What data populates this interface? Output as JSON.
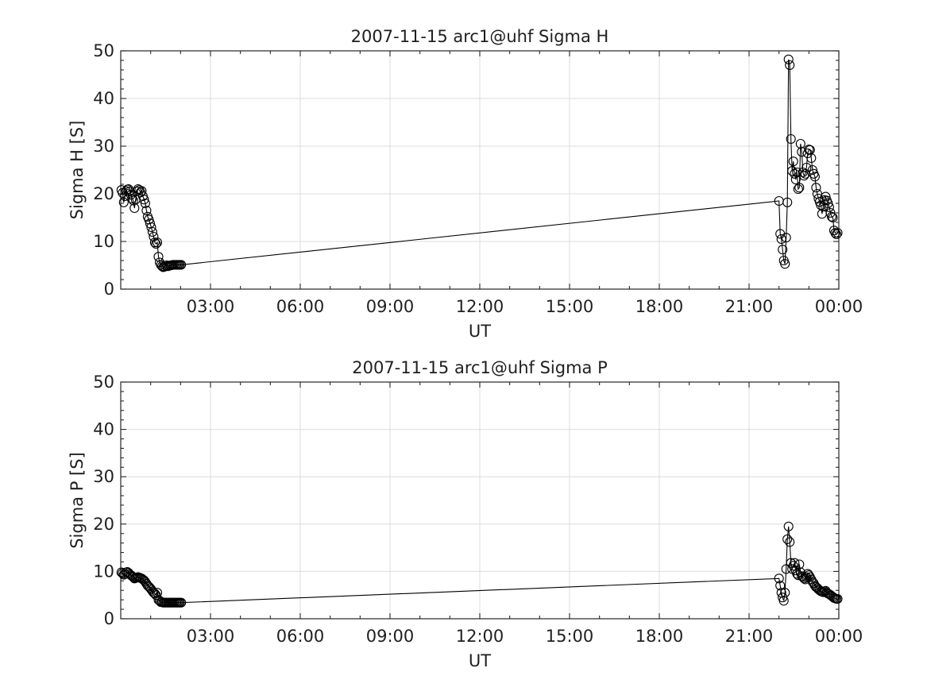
{
  "chart_data": [
    {
      "type": "line",
      "title": "2007-11-15  arc1@uhf Sigma H",
      "xlabel": "UT",
      "ylabel": "Sigma H [S]",
      "xlim": [
        0,
        24
      ],
      "ylim": [
        0,
        50
      ],
      "x_ticks": [
        "03:00",
        "06:00",
        "09:00",
        "12:00",
        "15:00",
        "18:00",
        "21:00",
        "00:00"
      ],
      "y_ticks": [
        "0",
        "10",
        "20",
        "30",
        "40",
        "50"
      ],
      "grid": true,
      "marker": "open-circle",
      "line_color": "#000000",
      "x": [
        0.02,
        0.06,
        0.1,
        0.14,
        0.18,
        0.22,
        0.26,
        0.3,
        0.34,
        0.38,
        0.42,
        0.46,
        0.5,
        0.54,
        0.58,
        0.62,
        0.66,
        0.7,
        0.74,
        0.78,
        0.82,
        0.86,
        0.9,
        0.94,
        0.98,
        1.02,
        1.06,
        1.1,
        1.14,
        1.18,
        1.22,
        1.26,
        1.3,
        1.34,
        1.38,
        1.42,
        1.46,
        1.5,
        1.54,
        1.58,
        1.62,
        1.66,
        1.7,
        1.74,
        1.78,
        1.82,
        1.86,
        1.9,
        1.94,
        1.98,
        2.02,
        22.0,
        22.04,
        22.08,
        22.12,
        22.16,
        22.2,
        22.24,
        22.28,
        22.32,
        22.36,
        22.4,
        22.44,
        22.48,
        22.52,
        22.56,
        22.6,
        22.64,
        22.68,
        22.72,
        22.76,
        22.8,
        22.84,
        22.88,
        22.92,
        22.96,
        23.0,
        23.04,
        23.08,
        23.12,
        23.16,
        23.2,
        23.24,
        23.28,
        23.32,
        23.36,
        23.4,
        23.44,
        23.48,
        23.52,
        23.56,
        23.6,
        23.64,
        23.68,
        23.72,
        23.76,
        23.8,
        23.84,
        23.88,
        23.92,
        23.96
      ],
      "y": [
        20.8,
        20.2,
        18.2,
        19.5,
        20.6,
        20.9,
        21.0,
        20.5,
        19.8,
        19.0,
        18.6,
        17.0,
        18.8,
        20.5,
        21.0,
        20.8,
        20.3,
        20.6,
        19.5,
        18.8,
        18.0,
        16.5,
        15.2,
        14.6,
        13.8,
        13.0,
        12.0,
        11.0,
        9.8,
        9.5,
        9.8,
        6.8,
        5.6,
        5.1,
        4.8,
        4.6,
        4.7,
        4.9,
        5.0,
        4.8,
        4.9,
        5.0,
        5.0,
        5.1,
        5.1,
        5.1,
        5.1,
        5.1,
        5.1,
        5.1,
        5.1,
        18.5,
        11.6,
        10.5,
        8.3,
        6.0,
        5.3,
        10.8,
        18.2,
        48.2,
        47.0,
        31.5,
        24.8,
        26.8,
        24.2,
        23.0,
        24.5,
        21.0,
        21.3,
        30.5,
        28.8,
        24.5,
        23.8,
        24.2,
        25.5,
        28.5,
        29.3,
        29.2,
        27.5,
        25.0,
        24.2,
        23.6,
        21.3,
        20.0,
        19.0,
        18.3,
        17.6,
        15.8,
        17.3,
        18.7,
        19.4,
        18.6,
        18.0,
        17.2,
        16.0,
        15.2,
        15.0,
        12.3,
        11.8,
        11.5,
        11.8
      ],
      "jump_index": 51
    },
    {
      "type": "line",
      "title": "2007-11-15  arc1@uhf Sigma P",
      "xlabel": "UT",
      "ylabel": "Sigma P [S]",
      "xlim": [
        0,
        24
      ],
      "ylim": [
        0,
        50
      ],
      "x_ticks": [
        "03:00",
        "06:00",
        "09:00",
        "12:00",
        "15:00",
        "18:00",
        "21:00",
        "00:00"
      ],
      "y_ticks": [
        "0",
        "10",
        "20",
        "30",
        "40",
        "50"
      ],
      "grid": true,
      "marker": "open-circle",
      "line_color": "#000000",
      "x": [
        0.02,
        0.06,
        0.1,
        0.14,
        0.18,
        0.22,
        0.26,
        0.3,
        0.34,
        0.38,
        0.42,
        0.46,
        0.5,
        0.54,
        0.58,
        0.62,
        0.66,
        0.7,
        0.74,
        0.78,
        0.82,
        0.86,
        0.9,
        0.94,
        0.98,
        1.02,
        1.06,
        1.1,
        1.14,
        1.18,
        1.22,
        1.26,
        1.3,
        1.34,
        1.38,
        1.42,
        1.46,
        1.5,
        1.54,
        1.58,
        1.62,
        1.66,
        1.7,
        1.74,
        1.78,
        1.82,
        1.86,
        1.9,
        1.94,
        1.98,
        2.02,
        22.0,
        22.04,
        22.08,
        22.12,
        22.16,
        22.2,
        22.24,
        22.28,
        22.32,
        22.36,
        22.4,
        22.44,
        22.48,
        22.52,
        22.56,
        22.6,
        22.64,
        22.68,
        22.72,
        22.76,
        22.8,
        22.84,
        22.88,
        22.92,
        22.96,
        23.0,
        23.04,
        23.08,
        23.12,
        23.16,
        23.2,
        23.24,
        23.28,
        23.32,
        23.36,
        23.4,
        23.44,
        23.48,
        23.52,
        23.56,
        23.6,
        23.64,
        23.68,
        23.72,
        23.76,
        23.8,
        23.84,
        23.88,
        23.92,
        23.96
      ],
      "y": [
        9.8,
        9.6,
        9.3,
        9.5,
        9.8,
        9.9,
        9.7,
        9.4,
        9.2,
        9.0,
        8.8,
        8.5,
        8.6,
        8.7,
        8.8,
        8.7,
        8.6,
        8.5,
        8.3,
        8.1,
        7.8,
        7.4,
        7.0,
        6.8,
        6.5,
        6.2,
        5.8,
        5.5,
        5.3,
        5.0,
        5.5,
        4.0,
        3.8,
        3.5,
        3.5,
        3.4,
        3.4,
        3.4,
        3.4,
        3.4,
        3.4,
        3.4,
        3.4,
        3.4,
        3.4,
        3.4,
        3.4,
        3.4,
        3.4,
        3.4,
        3.4,
        8.5,
        7.0,
        5.5,
        4.5,
        3.8,
        5.5,
        10.5,
        16.8,
        19.5,
        16.2,
        11.8,
        10.5,
        11.2,
        11.8,
        10.2,
        9.5,
        9.2,
        11.5,
        9.8,
        9.0,
        8.8,
        8.5,
        8.3,
        8.8,
        9.5,
        9.2,
        8.8,
        8.3,
        7.8,
        7.5,
        7.0,
        6.7,
        6.5,
        6.2,
        6.0,
        5.8,
        5.7,
        5.6,
        5.8,
        5.9,
        5.5,
        5.3,
        5.2,
        5.0,
        4.8,
        4.6,
        4.4,
        4.3,
        4.2,
        4.2
      ],
      "jump_index": 51
    }
  ]
}
